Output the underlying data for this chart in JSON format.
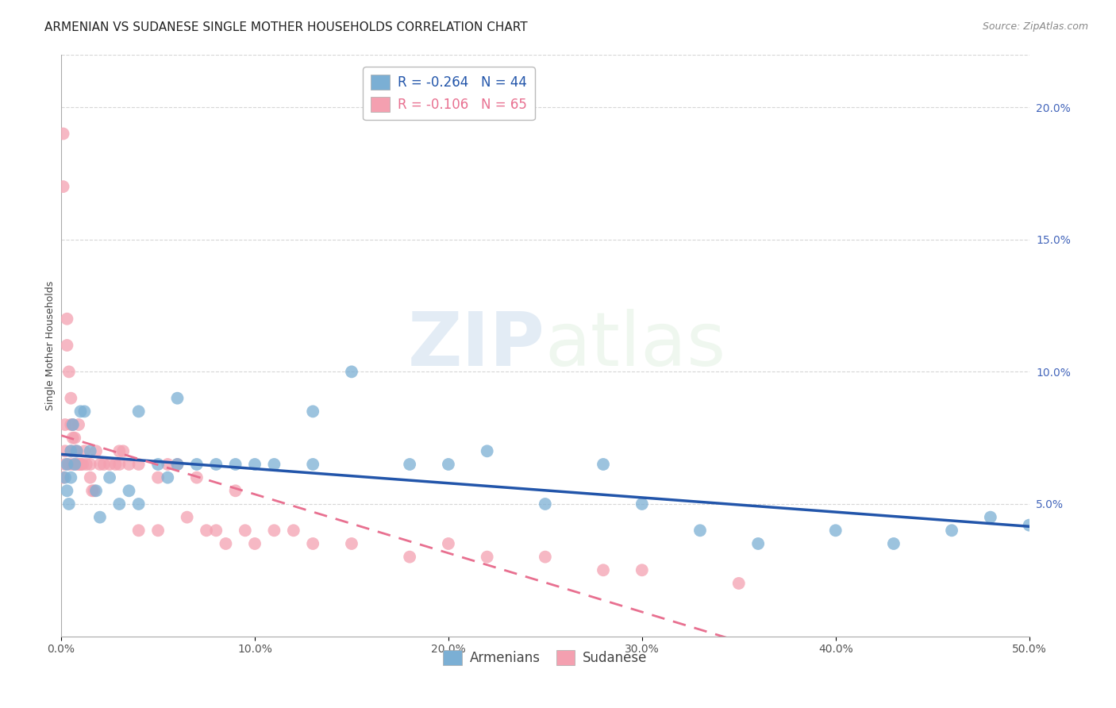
{
  "title": "ARMENIAN VS SUDANESE SINGLE MOTHER HOUSEHOLDS CORRELATION CHART",
  "source": "Source: ZipAtlas.com",
  "ylabel": "Single Mother Households",
  "right_yticks": [
    "20.0%",
    "15.0%",
    "10.0%",
    "5.0%"
  ],
  "right_ytick_vals": [
    0.2,
    0.15,
    0.1,
    0.05
  ],
  "legend_armenians_r": "R = -0.264",
  "legend_armenians_n": "N = 44",
  "legend_sudanese_r": "R = -0.106",
  "legend_sudanese_n": "N = 65",
  "watermark_zip": "ZIP",
  "watermark_atlas": "atlas",
  "blue_scatter_color": "#7BAFD4",
  "pink_scatter_color": "#F4A0B0",
  "blue_line_color": "#2255AA",
  "pink_line_color": "#E87090",
  "armenians_x": [
    0.002,
    0.003,
    0.003,
    0.004,
    0.005,
    0.005,
    0.006,
    0.007,
    0.008,
    0.01,
    0.012,
    0.015,
    0.018,
    0.02,
    0.025,
    0.03,
    0.035,
    0.04,
    0.05,
    0.055,
    0.06,
    0.07,
    0.08,
    0.09,
    0.1,
    0.11,
    0.13,
    0.15,
    0.18,
    0.2,
    0.22,
    0.25,
    0.28,
    0.3,
    0.33,
    0.36,
    0.4,
    0.43,
    0.46,
    0.48,
    0.5,
    0.13,
    0.04,
    0.06
  ],
  "armenians_y": [
    0.06,
    0.055,
    0.065,
    0.05,
    0.06,
    0.07,
    0.08,
    0.065,
    0.07,
    0.085,
    0.085,
    0.07,
    0.055,
    0.045,
    0.06,
    0.05,
    0.055,
    0.05,
    0.065,
    0.06,
    0.065,
    0.065,
    0.065,
    0.065,
    0.065,
    0.065,
    0.065,
    0.1,
    0.065,
    0.065,
    0.07,
    0.05,
    0.065,
    0.05,
    0.04,
    0.035,
    0.04,
    0.035,
    0.04,
    0.045,
    0.042,
    0.085,
    0.085,
    0.09
  ],
  "sudanese_x": [
    0.001,
    0.001,
    0.002,
    0.002,
    0.002,
    0.003,
    0.003,
    0.004,
    0.004,
    0.005,
    0.005,
    0.005,
    0.006,
    0.006,
    0.006,
    0.007,
    0.007,
    0.008,
    0.008,
    0.009,
    0.009,
    0.01,
    0.01,
    0.011,
    0.012,
    0.013,
    0.015,
    0.015,
    0.016,
    0.017,
    0.018,
    0.02,
    0.022,
    0.025,
    0.028,
    0.03,
    0.03,
    0.032,
    0.035,
    0.04,
    0.04,
    0.05,
    0.05,
    0.055,
    0.06,
    0.065,
    0.07,
    0.075,
    0.08,
    0.085,
    0.09,
    0.095,
    0.1,
    0.11,
    0.12,
    0.13,
    0.15,
    0.18,
    0.2,
    0.22,
    0.25,
    0.28,
    0.3,
    0.35,
    0.001
  ],
  "sudanese_y": [
    0.19,
    0.17,
    0.065,
    0.07,
    0.08,
    0.12,
    0.11,
    0.1,
    0.065,
    0.08,
    0.09,
    0.07,
    0.08,
    0.075,
    0.065,
    0.075,
    0.07,
    0.065,
    0.07,
    0.065,
    0.08,
    0.065,
    0.065,
    0.065,
    0.07,
    0.065,
    0.065,
    0.06,
    0.055,
    0.055,
    0.07,
    0.065,
    0.065,
    0.065,
    0.065,
    0.07,
    0.065,
    0.07,
    0.065,
    0.065,
    0.04,
    0.06,
    0.04,
    0.065,
    0.065,
    0.045,
    0.06,
    0.04,
    0.04,
    0.035,
    0.055,
    0.04,
    0.035,
    0.04,
    0.04,
    0.035,
    0.035,
    0.03,
    0.035,
    0.03,
    0.03,
    0.025,
    0.025,
    0.02,
    0.06
  ],
  "xmin": 0.0,
  "xmax": 0.5,
  "ymin": 0.0,
  "ymax": 0.22,
  "grid_color": "#CCCCCC",
  "background_color": "#FFFFFF",
  "title_fontsize": 11,
  "source_fontsize": 9,
  "axis_label_fontsize": 9,
  "tick_fontsize": 10,
  "legend_fontsize": 12
}
